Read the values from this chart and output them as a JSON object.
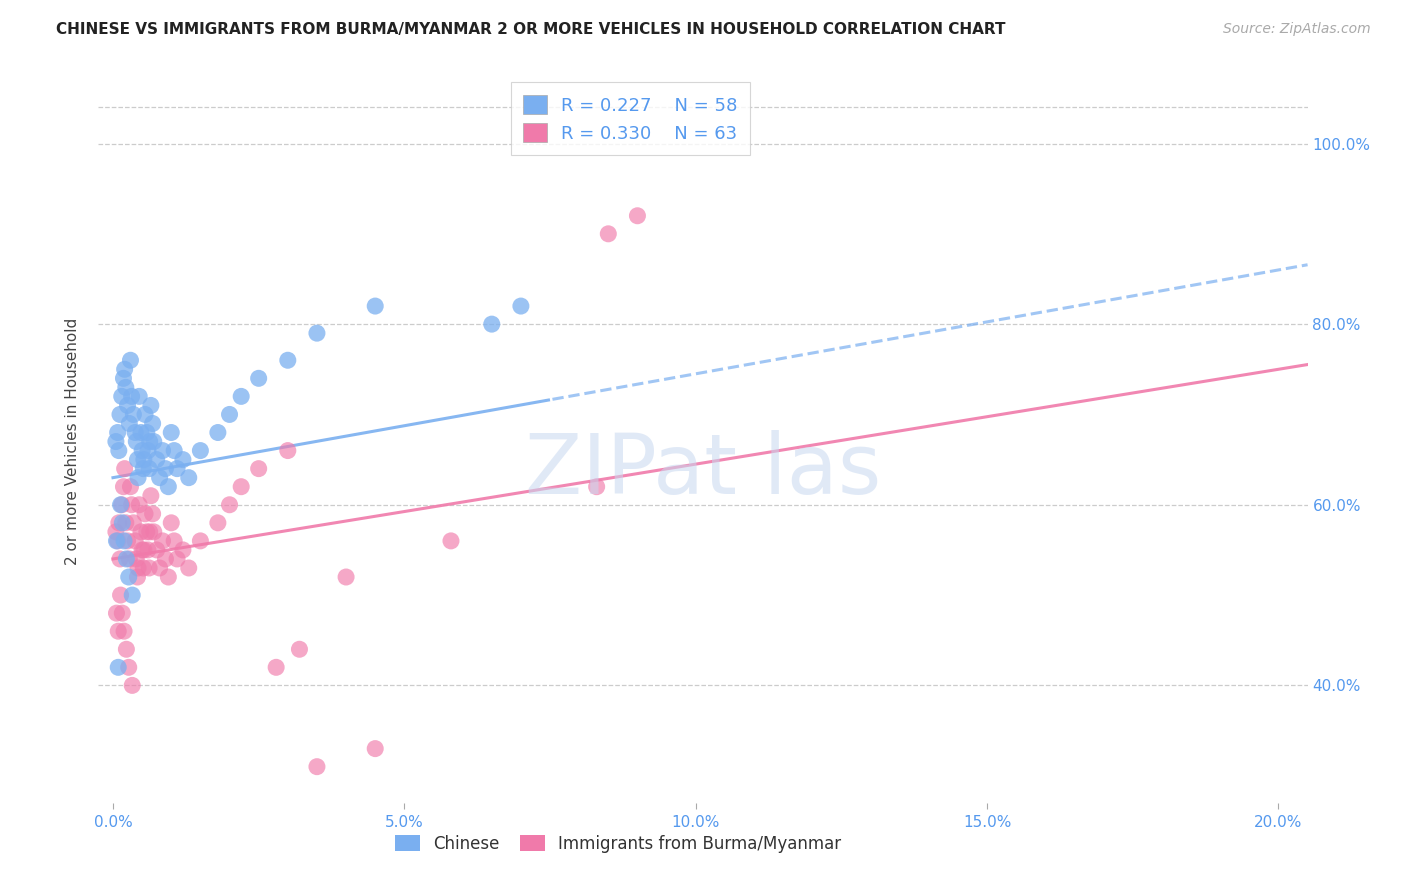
{
  "title": "CHINESE VS IMMIGRANTS FROM BURMA/MYANMAR 2 OR MORE VEHICLES IN HOUSEHOLD CORRELATION CHART",
  "source": "Source: ZipAtlas.com",
  "ylabel": "2 or more Vehicles in Household",
  "xlim": [
    -0.25,
    20.5
  ],
  "ylim": [
    27.0,
    107.0
  ],
  "xlabel_vals": [
    0.0,
    5.0,
    10.0,
    15.0,
    20.0
  ],
  "ylabel_vals": [
    40.0,
    60.0,
    80.0,
    100.0
  ],
  "blue_color": "#7aaff0",
  "pink_color": "#f07aaa",
  "blue_r": 0.227,
  "blue_n": 58,
  "pink_r": 0.33,
  "pink_n": 63,
  "legend_label_blue": "Chinese",
  "legend_label_pink": "Immigrants from Burma/Myanmar",
  "blue_trend_x0": 0.0,
  "blue_trend_y0": 63.0,
  "blue_trend_slope": 1.15,
  "pink_trend_x0": 0.0,
  "pink_trend_y0": 54.0,
  "pink_trend_slope": 1.05,
  "blue_x": [
    0.05,
    0.08,
    0.1,
    0.12,
    0.15,
    0.18,
    0.2,
    0.22,
    0.25,
    0.28,
    0.3,
    0.32,
    0.35,
    0.38,
    0.4,
    0.42,
    0.45,
    0.48,
    0.5,
    0.52,
    0.55,
    0.58,
    0.6,
    0.62,
    0.65,
    0.68,
    0.7,
    0.75,
    0.8,
    0.85,
    0.9,
    0.95,
    1.0,
    1.05,
    1.1,
    1.2,
    1.3,
    1.5,
    1.8,
    2.0,
    2.2,
    2.5,
    3.0,
    3.5,
    4.5,
    6.5,
    7.0,
    0.06,
    0.09,
    0.13,
    0.16,
    0.19,
    0.23,
    0.27,
    0.33,
    0.43,
    0.53,
    0.63
  ],
  "blue_y": [
    67.0,
    68.0,
    66.0,
    70.0,
    72.0,
    74.0,
    75.0,
    73.0,
    71.0,
    69.0,
    76.0,
    72.0,
    70.0,
    68.0,
    67.0,
    65.0,
    72.0,
    68.0,
    66.0,
    64.0,
    70.0,
    68.0,
    66.0,
    64.0,
    71.0,
    69.0,
    67.0,
    65.0,
    63.0,
    66.0,
    64.0,
    62.0,
    68.0,
    66.0,
    64.0,
    65.0,
    63.0,
    66.0,
    68.0,
    70.0,
    72.0,
    74.0,
    76.0,
    79.0,
    82.0,
    80.0,
    82.0,
    56.0,
    42.0,
    60.0,
    58.0,
    56.0,
    54.0,
    52.0,
    50.0,
    63.0,
    65.0,
    67.0
  ],
  "pink_x": [
    0.05,
    0.08,
    0.1,
    0.12,
    0.15,
    0.18,
    0.2,
    0.22,
    0.25,
    0.28,
    0.3,
    0.32,
    0.35,
    0.38,
    0.4,
    0.42,
    0.45,
    0.48,
    0.5,
    0.52,
    0.55,
    0.58,
    0.6,
    0.62,
    0.65,
    0.68,
    0.7,
    0.75,
    0.8,
    0.85,
    0.9,
    0.95,
    1.0,
    1.05,
    1.1,
    1.2,
    1.3,
    1.5,
    1.8,
    2.0,
    2.2,
    2.5,
    3.0,
    3.5,
    4.5,
    5.8,
    8.3,
    0.06,
    0.09,
    0.13,
    0.16,
    0.19,
    0.23,
    0.27,
    0.33,
    0.43,
    0.53,
    0.63,
    2.8,
    3.2,
    4.0,
    8.5,
    9.0
  ],
  "pink_y": [
    57.0,
    56.0,
    58.0,
    54.0,
    60.0,
    62.0,
    64.0,
    58.0,
    56.0,
    54.0,
    62.0,
    60.0,
    58.0,
    56.0,
    54.0,
    52.0,
    60.0,
    57.0,
    55.0,
    53.0,
    59.0,
    57.0,
    55.0,
    53.0,
    61.0,
    59.0,
    57.0,
    55.0,
    53.0,
    56.0,
    54.0,
    52.0,
    58.0,
    56.0,
    54.0,
    55.0,
    53.0,
    56.0,
    58.0,
    60.0,
    62.0,
    64.0,
    66.0,
    31.0,
    33.0,
    56.0,
    62.0,
    48.0,
    46.0,
    50.0,
    48.0,
    46.0,
    44.0,
    42.0,
    40.0,
    53.0,
    55.0,
    57.0,
    42.0,
    44.0,
    52.0,
    90.0,
    92.0
  ]
}
